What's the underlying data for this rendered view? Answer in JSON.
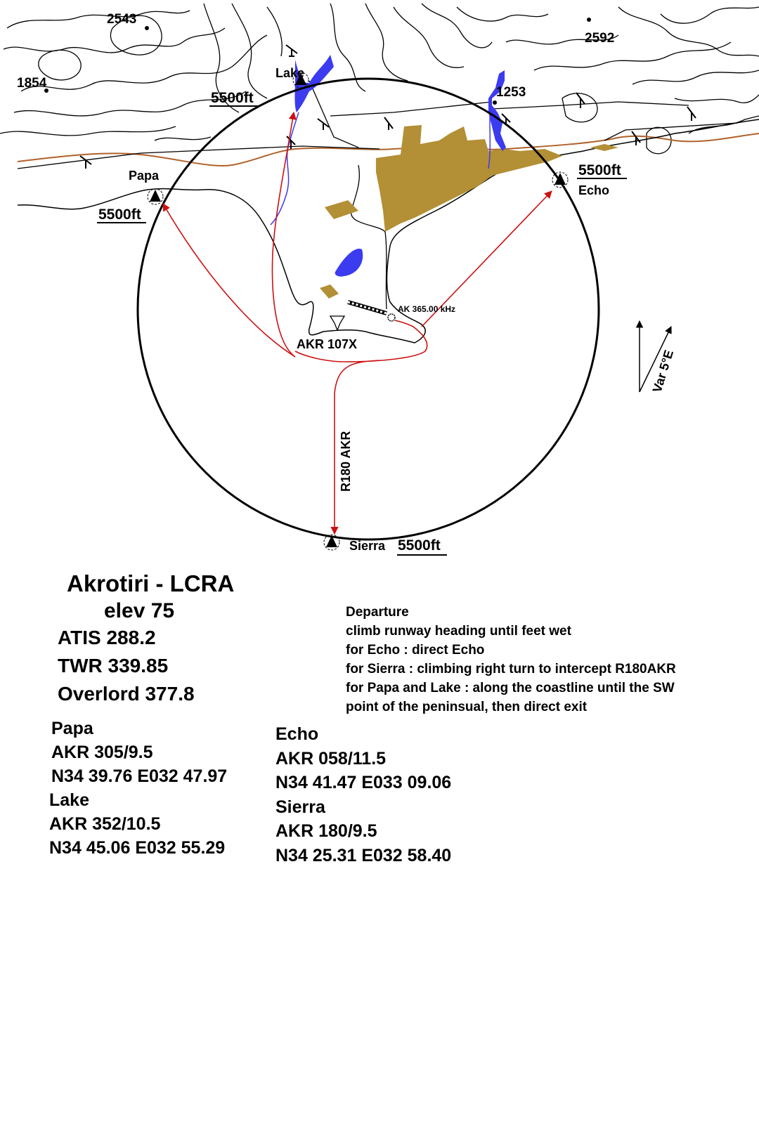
{
  "map": {
    "spot_heights": [
      "2543",
      "2592",
      "1854",
      "1253"
    ],
    "waypoints": {
      "lake": {
        "name": "Lake",
        "alt": "5500ft"
      },
      "papa": {
        "name": "Papa",
        "alt": "5500ft"
      },
      "echo": {
        "name": "Echo",
        "alt": "5500ft"
      },
      "sierra": {
        "name": "Sierra",
        "alt": "5500ft"
      }
    },
    "navaids": {
      "tacan": "AKR 107X",
      "ndb": "AK 365.00 kHz",
      "radial": "R180 AKR"
    },
    "variation": "Var 5°E",
    "colors": {
      "route": "#cc1111",
      "water": "#3b3bf0",
      "urban": "#b38f35",
      "road": "#b0622a",
      "coast": "#000000"
    }
  },
  "airfield": {
    "title": "Akrotiri - LCRA",
    "elevation": "elev 75",
    "atis": "ATIS 288.2",
    "tower": "TWR 339.85",
    "overlord": "Overlord 377.8"
  },
  "departure": {
    "heading": "Departure",
    "lines": [
      "climb runway heading until feet wet",
      "for Echo : direct Echo",
      "for Sierra : climbing right turn to intercept R180AKR",
      "for Papa and Lake : along the coastline until the SW",
      "point of the peninsual, then direct exit"
    ]
  },
  "waypoint_info": {
    "papa": {
      "name": "Papa",
      "bearing": "AKR 305/9.5",
      "coords": "N34 39.76 E032 47.97"
    },
    "lake": {
      "name": "Lake",
      "bearing": "AKR 352/10.5",
      "coords": "N34 45.06 E032 55.29"
    },
    "echo": {
      "name": "Echo",
      "bearing": "AKR 058/11.5",
      "coords": "N34 41.47 E033 09.06"
    },
    "sierra": {
      "name": "Sierra",
      "bearing": "AKR 180/9.5",
      "coords": "N34 25.31 E032 58.40"
    }
  }
}
